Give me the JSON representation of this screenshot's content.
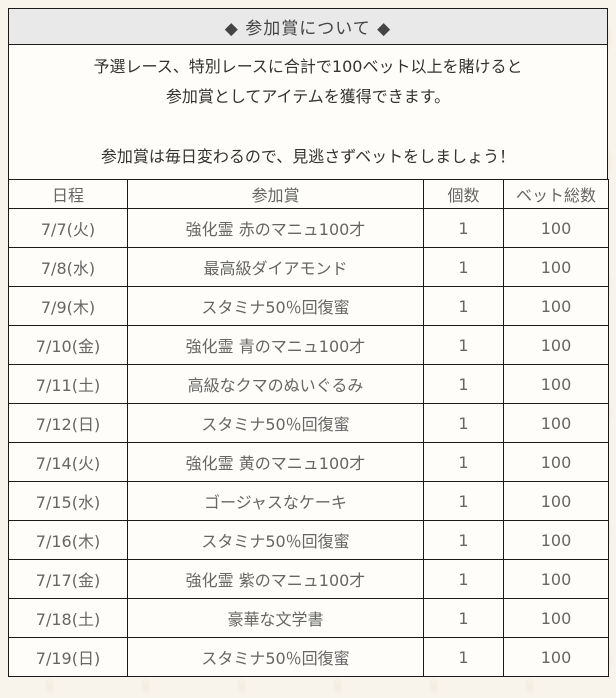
{
  "page": {
    "title": "◆ 参加賞について ◆",
    "description_lines": [
      "予選レース、特別レースに合計で100ベット以上を賭けると",
      "参加賞としてアイテムを獲得できます。",
      "",
      "参加賞は毎日変わるので、見逃さずベットをしましょう！"
    ]
  },
  "table": {
    "headers": [
      "日程",
      "参加賞",
      "個数",
      "ベット総数"
    ],
    "rows": [
      [
        "7/7(火)",
        "強化霊 赤のマニュ100才",
        "1",
        "100"
      ],
      [
        "7/8(水)",
        "最高級ダイアモンド",
        "1",
        "100"
      ],
      [
        "7/9(木)",
        "スタミナ50％回復蜜",
        "1",
        "100"
      ],
      [
        "7/10(金)",
        "強化霊 青のマニュ100才",
        "1",
        "100"
      ],
      [
        "7/11(土)",
        "高級なクマのぬいぐるみ",
        "1",
        "100"
      ],
      [
        "7/12(日)",
        "スタミナ50％回復蜜",
        "1",
        "100"
      ],
      [
        "7/14(火)",
        "強化霊 黄のマニュ100才",
        "1",
        "100"
      ],
      [
        "7/15(水)",
        "ゴージャスなケーキ",
        "1",
        "100"
      ],
      [
        "7/16(木)",
        "スタミナ50％回復蜜",
        "1",
        "100"
      ],
      [
        "7/17(金)",
        "強化霊 紫のマニュ100才",
        "1",
        "100"
      ],
      [
        "7/18(土)",
        "豪華な文学書",
        "1",
        "100"
      ],
      [
        "7/19(日)",
        "スタミナ50％回復蜜",
        "1",
        "100"
      ]
    ]
  },
  "colors": {
    "page_bg": "#f8f4ec",
    "panel_bg": "#fffdfa",
    "title_bg": "#e9e9e9",
    "border": "#1a1a1a",
    "title_text": "#444444",
    "body_text": "#333333",
    "cell_text": "#666666"
  }
}
